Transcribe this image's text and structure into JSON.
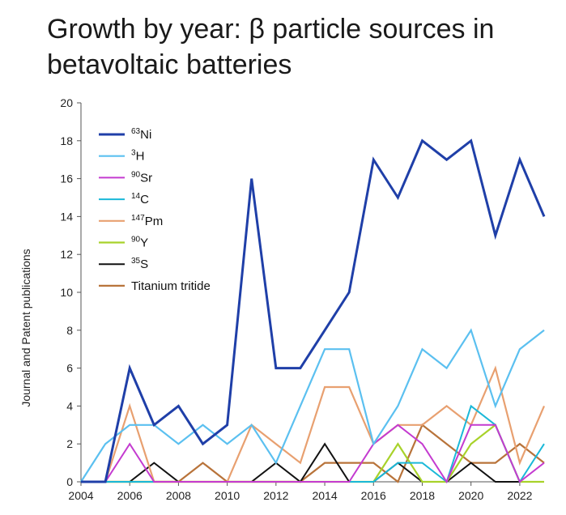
{
  "title_line1": "Growth by year:  β particle sources in",
  "title_line2": "betavoltaic batteries",
  "chart_data": {
    "type": "line",
    "title": "Growth by year:  β particle sources in betavoltaic batteries",
    "xlabel": "",
    "ylabel": "Journal and Patent publications",
    "xlim": [
      2004,
      2023
    ],
    "ylim": [
      0,
      20
    ],
    "x_ticks": [
      "2004",
      "2006",
      "2008",
      "2010",
      "2012",
      "2014",
      "2016",
      "2018",
      "2020",
      "2022"
    ],
    "y_ticks": [
      "0",
      "2",
      "4",
      "6",
      "8",
      "10",
      "12",
      "14",
      "16",
      "18",
      "20"
    ],
    "legend_position": "top-left",
    "x": [
      2004,
      2005,
      2006,
      2007,
      2008,
      2009,
      2010,
      2011,
      2012,
      2013,
      2014,
      2015,
      2016,
      2017,
      2018,
      2019,
      2020,
      2021,
      2022,
      2023
    ],
    "series": [
      {
        "name": "⁶³Ni",
        "sup": "63",
        "base": "Ni",
        "color": "#1f3fa8",
        "width": 3,
        "values": [
          0,
          0,
          6,
          3,
          4,
          2,
          3,
          16,
          6,
          6,
          8,
          10,
          17,
          15,
          18,
          17,
          18,
          13,
          17,
          14
        ]
      },
      {
        "name": "³H",
        "sup": "3",
        "base": "H",
        "color": "#5bc0f0",
        "width": 2.2,
        "values": [
          0,
          2,
          3,
          3,
          2,
          3,
          2,
          3,
          1,
          4,
          7,
          7,
          2,
          4,
          7,
          6,
          8,
          4,
          7,
          8
        ]
      },
      {
        "name": "⁹⁰Sr",
        "sup": "90",
        "base": "Sr",
        "color": "#c43bd0",
        "width": 2,
        "values": [
          0,
          0,
          2,
          0,
          0,
          0,
          0,
          0,
          0,
          0,
          0,
          0,
          2,
          3,
          2,
          0,
          3,
          3,
          0,
          1
        ]
      },
      {
        "name": "¹⁴C",
        "sup": "14",
        "base": "C",
        "color": "#1ab8d8",
        "width": 2,
        "values": [
          0,
          0,
          0,
          0,
          0,
          0,
          0,
          0,
          0,
          0,
          0,
          0,
          0,
          1,
          1,
          0,
          4,
          3,
          0,
          2
        ]
      },
      {
        "name": "¹⁴⁷Pm",
        "sup": "147",
        "base": "Pm",
        "color": "#e8a070",
        "width": 2.2,
        "values": [
          0,
          0,
          4,
          0,
          0,
          0,
          0,
          3,
          2,
          1,
          5,
          5,
          2,
          3,
          3,
          4,
          3,
          6,
          1,
          4
        ]
      },
      {
        "name": "⁹⁰Y",
        "sup": "90",
        "base": "Y",
        "color": "#a8d22a",
        "width": 2.2,
        "values": [
          0,
          0,
          0,
          0,
          0,
          0,
          0,
          0,
          0,
          0,
          0,
          0,
          0,
          2,
          0,
          0,
          2,
          3,
          0,
          0
        ]
      },
      {
        "name": "³⁵S",
        "sup": "35",
        "base": "S",
        "color": "#111111",
        "width": 2,
        "values": [
          0,
          0,
          0,
          1,
          0,
          0,
          0,
          0,
          1,
          0,
          2,
          0,
          0,
          1,
          0,
          0,
          1,
          0,
          0,
          0
        ]
      },
      {
        "name": "Titanium tritide",
        "sup": "",
        "base": "Titanium tritide",
        "color": "#b8733a",
        "width": 2.2,
        "values": [
          0,
          0,
          0,
          0,
          0,
          1,
          0,
          0,
          0,
          0,
          1,
          1,
          1,
          0,
          3,
          2,
          1,
          1,
          2,
          1
        ]
      }
    ]
  }
}
